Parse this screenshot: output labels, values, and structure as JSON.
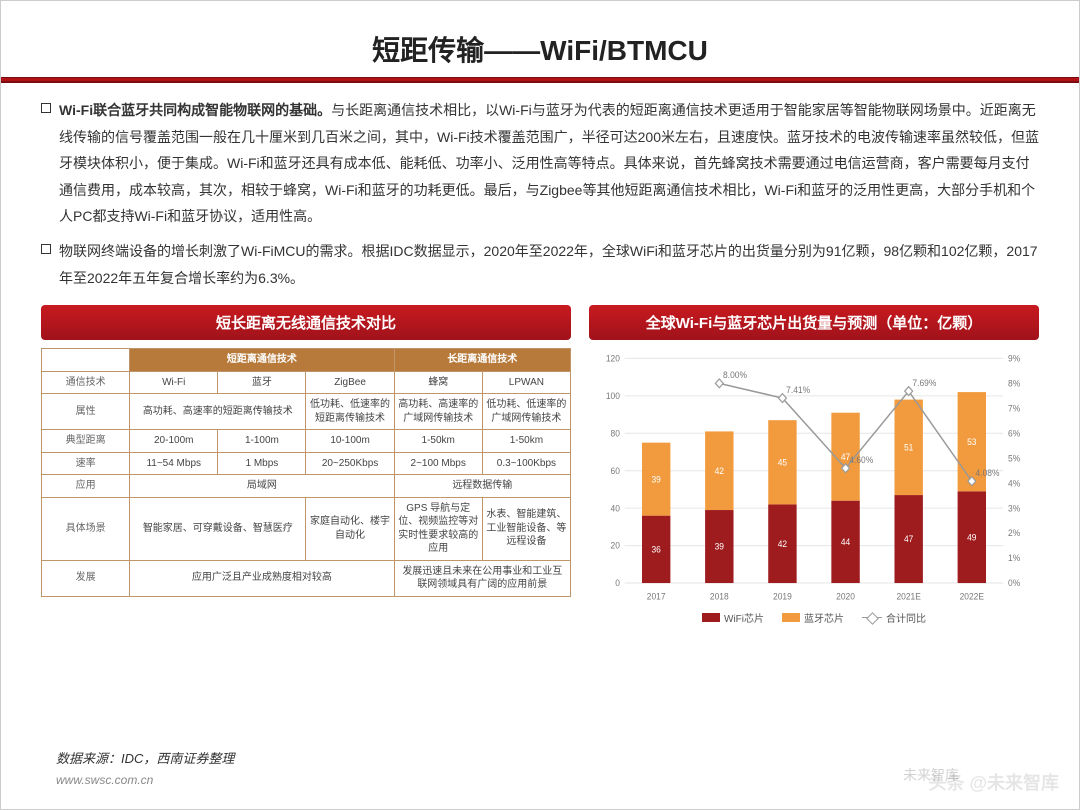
{
  "title": "短距传输——WiFi/BTMCU",
  "para1_bold": "Wi-Fi联合蓝牙共同构成智能物联网的基础。",
  "para1_rest": "与长距离通信技术相比，以Wi-Fi与蓝牙为代表的短距离通信技术更适用于智能家居等智能物联网场景中。近距离无线传输的信号覆盖范围一般在几十厘米到几百米之间，其中，Wi-Fi技术覆盖范围广，半径可达200米左右，且速度快。蓝牙技术的电波传输速率虽然较低，但蓝牙模块体积小，便于集成。Wi-Fi和蓝牙还具有成本低、能耗低、功率小、泛用性高等特点。具体来说，首先蜂窝技术需要通过电信运营商，客户需要每月支付通信费用，成本较高，其次，相较于蜂窝，Wi-Fi和蓝牙的功耗更低。最后，与Zigbee等其他短距离通信技术相比，Wi-Fi和蓝牙的泛用性更高，大部分手机和个人PC都支持Wi-Fi和蓝牙协议，适用性高。",
  "para2": "物联网终端设备的增长刺激了Wi-FiMCU的需求。根据IDC数据显示，2020年至2022年，全球WiFi和蓝牙芯片的出货量分别为91亿颗，98亿颗和102亿颗，2017年至2022年五年复合增长率约为6.3%。",
  "left_header": "短长距离无线通信技术对比",
  "right_header": "全球Wi-Fi与蓝牙芯片出货量与预测（单位：亿颗）",
  "table": {
    "top_group1": "短距离通信技术",
    "top_group2": "长距离通信技术",
    "rows": [
      {
        "h": "通信技术",
        "c": [
          "Wi-Fi",
          "蓝牙",
          "ZigBee",
          "蜂窝",
          "LPWAN"
        ]
      },
      {
        "h": "属性",
        "span2": "高功耗、高速率的短距离传输技术",
        "c3": "低功耗、低速率的短距离传输技术",
        "c4": "高功耗、高速率的广域网传输技术",
        "c5": "低功耗、低速率的广域网传输技术"
      },
      {
        "h": "典型距离",
        "c": [
          "20-100m",
          "1-100m",
          "10-100m",
          "1-50km",
          "1-50km"
        ]
      },
      {
        "h": "速率",
        "c": [
          "11~54 Mbps",
          "1 Mbps",
          "20~250Kbps",
          "2~100 Mbps",
          "0.3~100Kbps"
        ]
      },
      {
        "h": "应用",
        "span3": "局域网",
        "span2b": "远程数据传输"
      },
      {
        "h": "具体场景",
        "span2": "智能家居、可穿戴设备、智慧医疗",
        "c3": "家庭自动化、楼宇自动化",
        "c4": "GPS 导航与定位、视频监控等对实时性要求较高的应用",
        "c5": "水表、智能建筑、工业智能设备、等远程设备"
      },
      {
        "h": "发展",
        "span3": "应用广泛且产业成熟度相对较高",
        "span2b": "发展迅速且未来在公用事业和工业互联网领域具有广阔的应用前景"
      }
    ]
  },
  "chart": {
    "categories": [
      "2017",
      "2018",
      "2019",
      "2020",
      "2021E",
      "2022E"
    ],
    "wifi": [
      36,
      39,
      42,
      44,
      47,
      49
    ],
    "bt": [
      39,
      42,
      45,
      47,
      51,
      53
    ],
    "growth": [
      null,
      8.0,
      7.41,
      4.6,
      7.69,
      4.08
    ],
    "ylim": [
      0,
      120
    ],
    "ytick": 20,
    "y2lim": [
      0,
      9
    ],
    "y2tick": 1,
    "colors": {
      "wifi": "#9e1b1e",
      "bt": "#f29b3e",
      "line": "#999",
      "grid": "#e6e6e6",
      "axis": "#888",
      "text": "#777"
    },
    "legend": [
      "WiFi芯片",
      "蓝牙芯片",
      "合计同比"
    ]
  },
  "source": "数据来源：IDC，西南证券整理",
  "url": "www.swsc.com.cn",
  "watermark": "头条 @未来智库",
  "watermark2": "未来智库"
}
